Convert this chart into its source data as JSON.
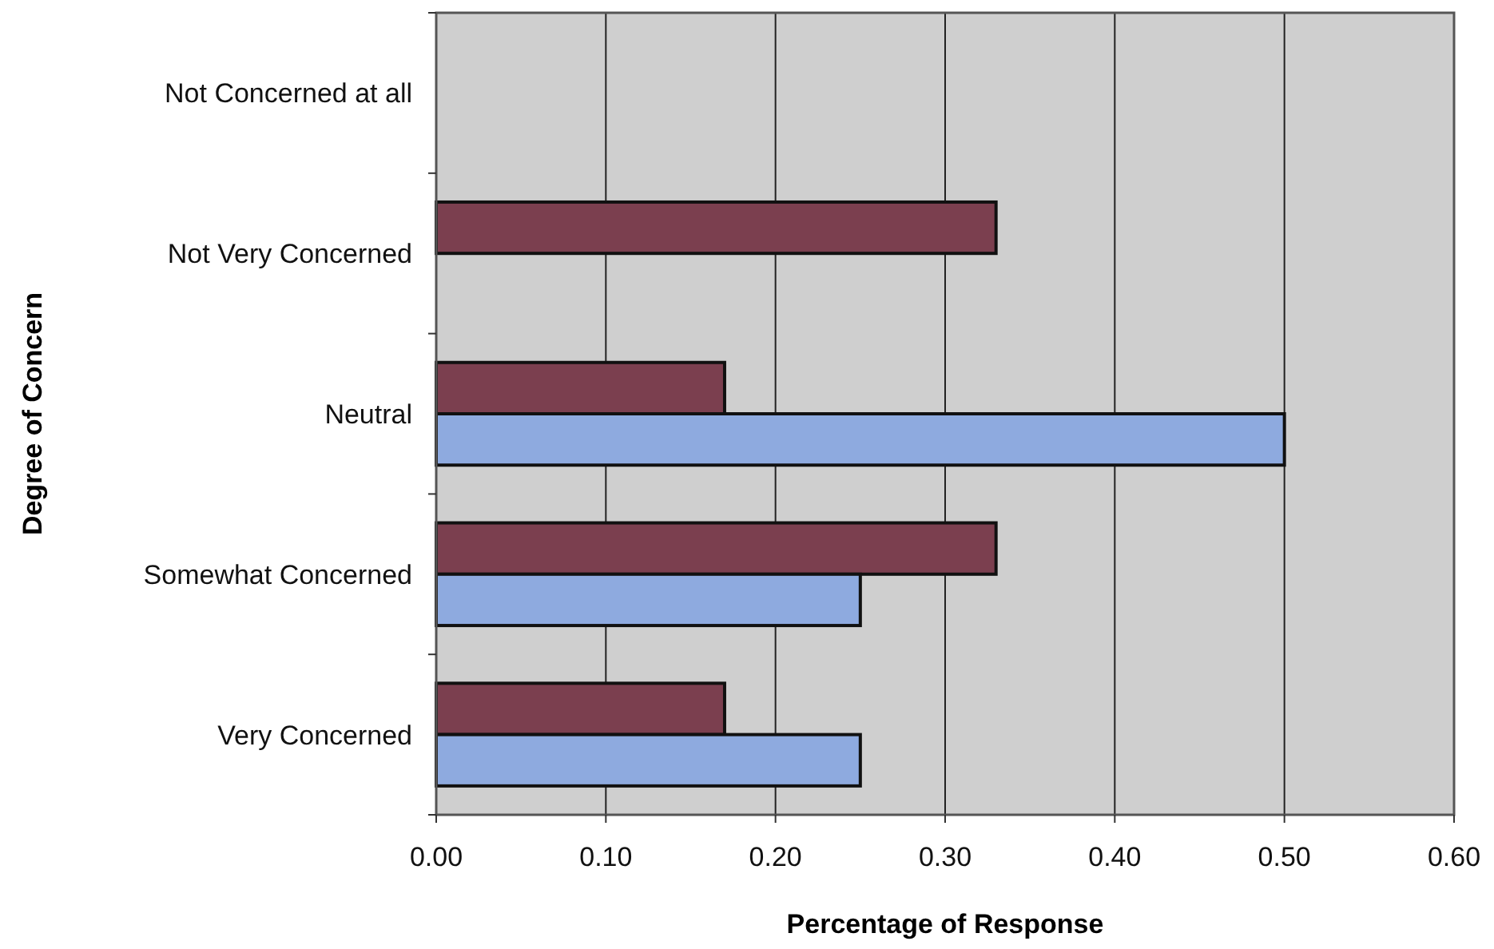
{
  "chart_data": {
    "type": "bar",
    "orientation": "horizontal",
    "xlabel": "Percentage of Response",
    "ylabel": "Degree of Concern",
    "categories": [
      "Not Concerned at all",
      "Not Very Concerned",
      "Neutral",
      "Somewhat Concerned",
      "Very Concerned"
    ],
    "series": [
      {
        "color": "#7b3f4f",
        "values": [
          null,
          0.33,
          0.17,
          0.33,
          0.17
        ]
      },
      {
        "color": "#8eaadf",
        "values": [
          null,
          null,
          0.5,
          0.25,
          0.25
        ]
      }
    ],
    "xlim": [
      0,
      0.6
    ],
    "xticks": [
      {
        "value": 0,
        "label": "0.00"
      },
      {
        "value": 0.1,
        "label": "0.10"
      },
      {
        "value": 0.2,
        "label": "0.20"
      },
      {
        "value": 0.3,
        "label": "0.30"
      },
      {
        "value": 0.4,
        "label": "0.40"
      },
      {
        "value": 0.5,
        "label": "0.50"
      },
      {
        "value": 0.6,
        "label": "0.60"
      }
    ],
    "grid": "x"
  }
}
